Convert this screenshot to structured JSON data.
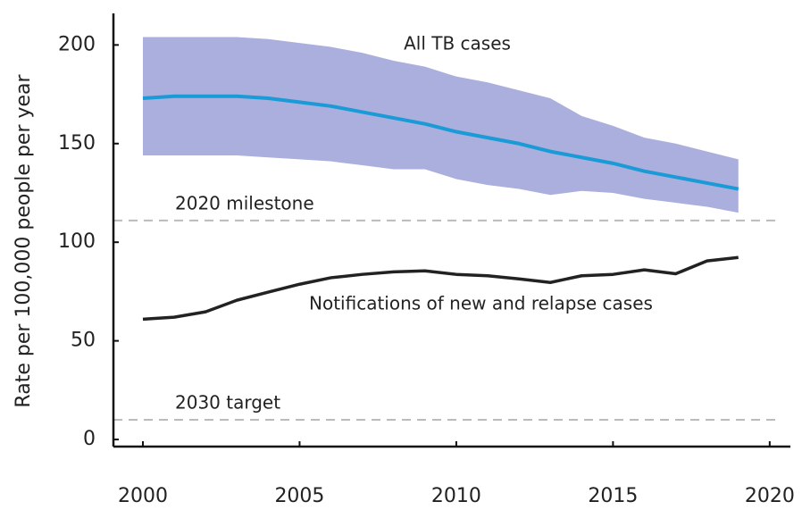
{
  "chart_data": {
    "type": "line",
    "y_label": "Rate per 100,000 people per year",
    "x": [
      2000,
      2001,
      2002,
      2003,
      2004,
      2005,
      2006,
      2007,
      2008,
      2009,
      2010,
      2011,
      2012,
      2013,
      2014,
      2015,
      2016,
      2017,
      2018,
      2019
    ],
    "series": [
      {
        "name": "All TB cases",
        "color": "#1a9ad6",
        "band_color": "#abafdd",
        "values": [
          173,
          174,
          174,
          174,
          173,
          171,
          169,
          166,
          163,
          160,
          156,
          153,
          150,
          146,
          143,
          140,
          136,
          133,
          130,
          127
        ],
        "upper": [
          204,
          204,
          204,
          204,
          203,
          201,
          199,
          196,
          192,
          189,
          184,
          181,
          177,
          173,
          164,
          159,
          153,
          150,
          146,
          142
        ],
        "lower": [
          144,
          144,
          144,
          144,
          143,
          142,
          141,
          139,
          137,
          137,
          132,
          129,
          127,
          124,
          126,
          125,
          122,
          120,
          118,
          115
        ]
      },
      {
        "name": "Notifications of new and relapse cases",
        "color": "#222222",
        "values": [
          61,
          62,
          64.7,
          70.6,
          74.7,
          78.7,
          82,
          83.7,
          85,
          85.5,
          83.7,
          83,
          81.4,
          79.6,
          83,
          83.7,
          86,
          84,
          90.5,
          92.3
        ]
      }
    ],
    "hlines": [
      {
        "label": "2020 milestone",
        "value": 111,
        "color": "#bbbbbb"
      },
      {
        "label": "2030 target",
        "value": 10,
        "color": "#bbbbbb"
      }
    ],
    "xlim": [
      1999.06,
      2020.66
    ],
    "ylim": [
      -3.6,
      216
    ],
    "xticks": [
      2000,
      2005,
      2010,
      2015,
      2020
    ],
    "yticks": [
      0,
      50,
      100,
      150,
      200
    ],
    "grid": false
  }
}
